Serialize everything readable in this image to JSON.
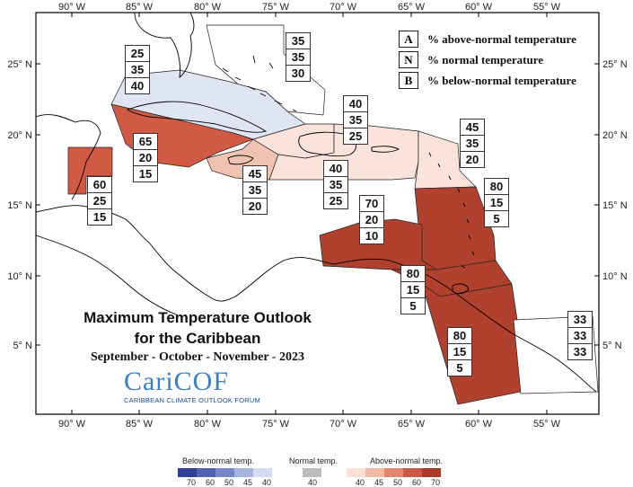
{
  "map": {
    "title_line1": "Maximum Temperature Outlook",
    "title_line2": "for the Caribbean",
    "subtitle": "September - October - November - 2023",
    "longitude_ticks": [
      "90° W",
      "85° W",
      "80° W",
      "75° W",
      "70° W",
      "65° W",
      "60° W",
      "55° W"
    ],
    "latitude_ticks": [
      "25° N",
      "20° N",
      "15° N",
      "10° N",
      "5° N"
    ],
    "zones": [
      {
        "id": "bahamas",
        "above": "35",
        "normal": "35",
        "below": "30",
        "fill": "#ffffff"
      },
      {
        "id": "cuba-north",
        "above": "25",
        "normal": "35",
        "below": "40",
        "fill": "#dfe5f3"
      },
      {
        "id": "cuba-cayman",
        "above": "65",
        "normal": "20",
        "below": "15",
        "fill": "#d05a44"
      },
      {
        "id": "belize",
        "above": "60",
        "normal": "25",
        "below": "15",
        "fill": "#d05a44"
      },
      {
        "id": "jamaica",
        "above": "45",
        "normal": "35",
        "below": "20",
        "fill": "#f0c2b2"
      },
      {
        "id": "hispaniola-north",
        "above": "40",
        "normal": "35",
        "below": "25",
        "fill": "#f9e3da"
      },
      {
        "id": "hispaniola-south",
        "above": "40",
        "normal": "35",
        "below": "25",
        "fill": "#f9e3da"
      },
      {
        "id": "leeward",
        "above": "45",
        "normal": "35",
        "below": "20",
        "fill": "#f9e3da"
      },
      {
        "id": "windward",
        "above": "80",
        "normal": "15",
        "below": "5",
        "fill": "#b0412e"
      },
      {
        "id": "abc-islands",
        "above": "70",
        "normal": "20",
        "below": "10",
        "fill": "#b0412e"
      },
      {
        "id": "trinidad",
        "above": "80",
        "normal": "15",
        "below": "5",
        "fill": "#b0412e"
      },
      {
        "id": "guianas",
        "above": "80",
        "normal": "15",
        "below": "5",
        "fill": "#b0412e"
      },
      {
        "id": "french-guiana",
        "above": "33",
        "normal": "33",
        "below": "33",
        "fill": "#ffffff"
      }
    ]
  },
  "key": [
    {
      "letter": "A",
      "text": "% above-normal temperature"
    },
    {
      "letter": "N",
      "text": "% normal temperature"
    },
    {
      "letter": "B",
      "text": "% below-normal temperature"
    }
  ],
  "logo": {
    "name": "CariCOF",
    "tagline": "CARIBBEAN CLIMATE OUTLOOK FORUM"
  },
  "colorbar": {
    "below_label": "Below-normal temp.",
    "normal_label": "Normal temp.",
    "above_label": "Above-normal temp.",
    "below_colors": [
      "#2e3f97",
      "#4f63b0",
      "#7585c6",
      "#a7b2dc",
      "#d4daf0"
    ],
    "normal_color": "#bdbdbd",
    "above_colors": [
      "#fbe0d4",
      "#f3b9a3",
      "#e4866d",
      "#c95844",
      "#a83a28"
    ],
    "below_ticks": [
      "70",
      "60",
      "50",
      "45",
      "40"
    ],
    "normal_ticks": [
      "40"
    ],
    "above_ticks": [
      "40",
      "45",
      "50",
      "60",
      "70"
    ]
  },
  "colors": {
    "land_outline": "#000000",
    "frame": "#000000"
  }
}
